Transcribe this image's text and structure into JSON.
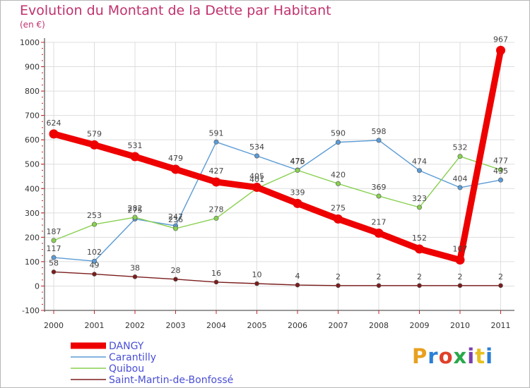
{
  "header": {
    "title": "Evolution du Montant de la Dette par Habitant",
    "subtitle": "(en €)"
  },
  "logo": {
    "text": "Proxiti",
    "colors": [
      "#e8a020",
      "#2a7fd4",
      "#e0402a",
      "#2aa84a",
      "#7a3fb0",
      "#e8c020",
      "#2a7fd4"
    ]
  },
  "colors": {
    "title": "#c0326e",
    "axis": "#cc2222",
    "grid": "#dddddd",
    "legend_text": "#4a4fd6"
  },
  "chart_data": {
    "type": "line",
    "title": "Evolution du Montant de la Dette par Habitant",
    "subtitle": "(en €)",
    "xlabel": "",
    "ylabel": "",
    "ylim": [
      -100,
      1000
    ],
    "y_ticks": [
      "-100",
      "0",
      "100",
      "200",
      "300",
      "400",
      "500",
      "600",
      "700",
      "800",
      "900",
      "1000"
    ],
    "grid": true,
    "legend_position": "bottom-left",
    "categories": [
      "2000",
      "2001",
      "2002",
      "2003",
      "2004",
      "2005",
      "2006",
      "2007",
      "2008",
      "2009",
      "2010",
      "2011"
    ],
    "series": [
      {
        "name": "DANGY",
        "color": "#ee0000",
        "values": [
          624,
          579,
          531,
          479,
          427,
          405,
          339,
          275,
          217,
          152,
          107,
          967
        ],
        "labels": [
          "624",
          "579",
          "531",
          "479",
          "427",
          "405",
          "339",
          "275",
          "217",
          "152",
          "107",
          "967"
        ]
      },
      {
        "name": "Carantilly",
        "color": "#5b9bd5",
        "values": [
          117,
          102,
          275,
          247,
          591,
          534,
          476,
          590,
          598,
          474,
          404,
          435
        ],
        "labels": [
          "117",
          "102",
          "275",
          "247",
          "591",
          "534",
          "476",
          "590",
          "598",
          "474",
          "404",
          "435"
        ]
      },
      {
        "name": "Quibou",
        "color": "#88d050",
        "values": [
          187,
          253,
          282,
          236,
          278,
          401,
          475,
          420,
          369,
          323,
          532,
          477
        ],
        "labels": [
          "187",
          "253",
          "282",
          "236",
          "278",
          "401",
          "475",
          "420",
          "369",
          "323",
          "532",
          "477"
        ]
      },
      {
        "name": "Saint-Martin-de-Bonfossé",
        "color": "#7b1c1c",
        "values": [
          58,
          49,
          38,
          28,
          16,
          10,
          4,
          2,
          2,
          2,
          2,
          2
        ],
        "labels": [
          "58",
          "49",
          "38",
          "28",
          "16",
          "10",
          "4",
          "2",
          "2",
          "2",
          "2",
          "2"
        ]
      }
    ]
  }
}
